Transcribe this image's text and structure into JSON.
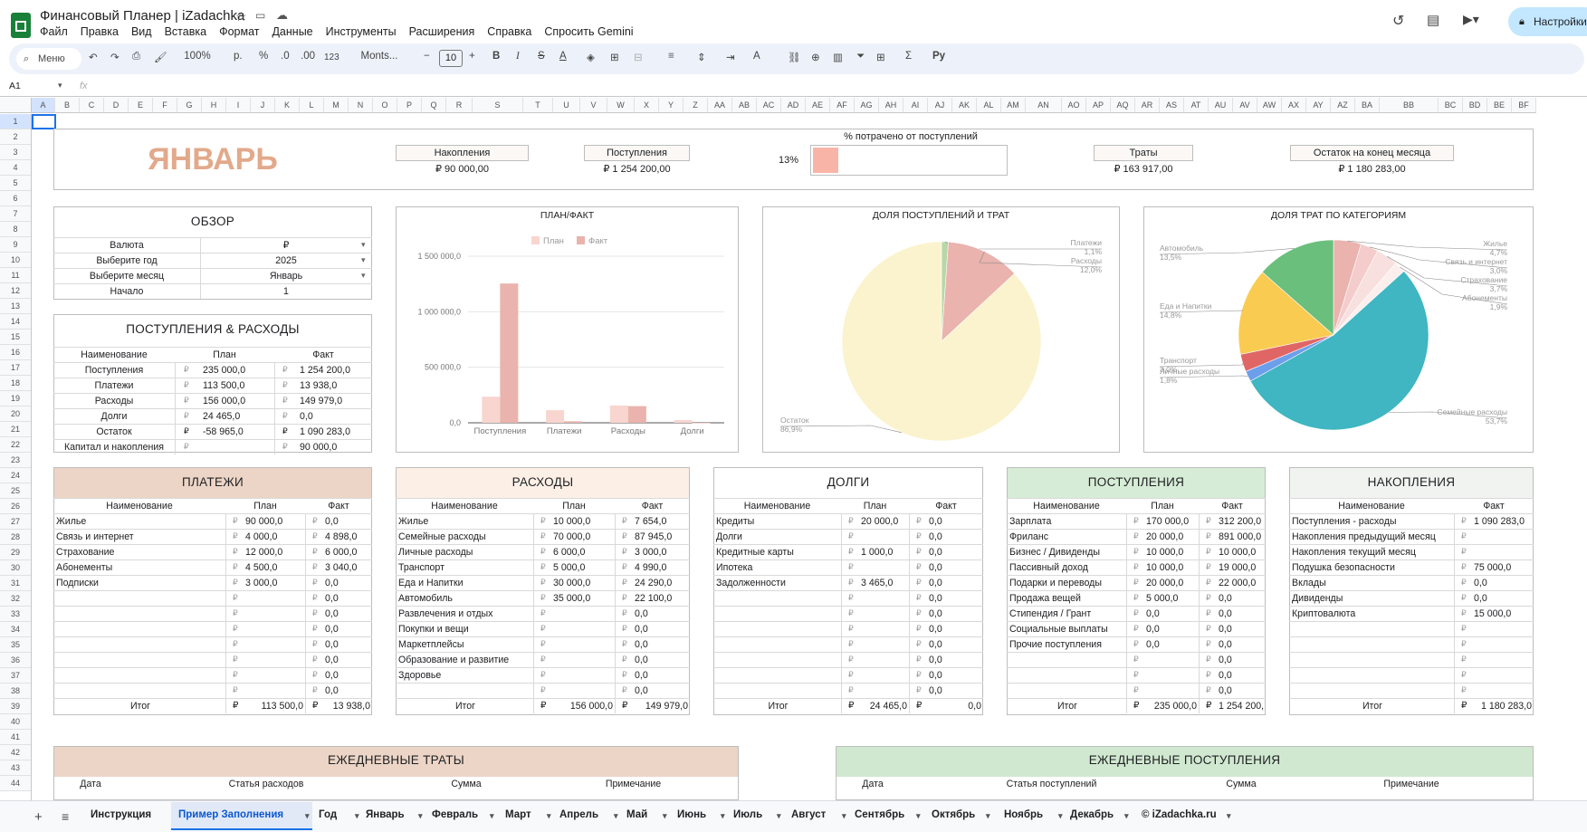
{
  "doc": {
    "title": "Финансовый Планер | iZadachka",
    "share": "Настройки"
  },
  "menu": [
    "Файл",
    "Правка",
    "Вид",
    "Вставка",
    "Формат",
    "Данные",
    "Инструменты",
    "Расширения",
    "Справка",
    "Спросить Gemini"
  ],
  "toolbar": {
    "search": "Меню",
    "zoom": "100%",
    "currency": "р.",
    "percent": "%",
    "dec_less": ".0",
    "dec_more": ".00",
    "fmt123": "123",
    "font": "Monts...",
    "font_size": "10",
    "func": "Σ",
    "py": "Py"
  },
  "formula": {
    "cell": "A1",
    "fx": "fx"
  },
  "cols": [
    "A",
    "B",
    "C",
    "D",
    "E",
    "F",
    "G",
    "H",
    "I",
    "J",
    "K",
    "L",
    "M",
    "N",
    "O",
    "P",
    "Q",
    "R",
    "S",
    "T",
    "U",
    "V",
    "W",
    "X",
    "Y",
    "Z",
    "AA",
    "AB",
    "AC",
    "AD",
    "AE",
    "AF",
    "AG",
    "AH",
    "AI",
    "AJ",
    "AK",
    "AL",
    "AM",
    "AN",
    "AO",
    "AP",
    "AQ",
    "AR",
    "AS",
    "AT",
    "AU",
    "AV",
    "AW",
    "AX",
    "AY",
    "AZ",
    "BA",
    "BB",
    "BC",
    "BD",
    "BE",
    "BF"
  ],
  "rows": [
    "1",
    "2",
    "3",
    "4",
    "5",
    "6",
    "7",
    "8",
    "9",
    "10",
    "11",
    "12",
    "13",
    "14",
    "15",
    "16",
    "17",
    "18",
    "19",
    "20",
    "21",
    "22",
    "23",
    "24",
    "25",
    "26",
    "27",
    "28",
    "29",
    "30",
    "31",
    "32",
    "33",
    "34",
    "35",
    "36",
    "37",
    "38",
    "39",
    "40",
    "41",
    "42",
    "43",
    "44"
  ],
  "kpi": {
    "month": "ЯНВАРЬ",
    "savings_label": "Накопления",
    "savings": "₽ 90 000,00",
    "income_label": "Поступления",
    "income": "₽ 1 254 200,00",
    "spent_title": "% потрачено от поступлений",
    "spent_pct": "13%",
    "spent_fraction": 0.13,
    "expenses_label": "Траты",
    "expenses": "₽ 163 917,00",
    "balance_label": "Остаток на конец месяца",
    "balance": "₽ 1 180 283,00"
  },
  "overview": {
    "title": "ОБЗОР",
    "rows": [
      [
        "Валюта",
        "₽"
      ],
      [
        "Выберите год",
        "2025"
      ],
      [
        "Выберите месяц",
        "Январь"
      ],
      [
        "Начало",
        "1"
      ]
    ]
  },
  "ie": {
    "title": "ПОСТУПЛЕНИЯ & РАСХОДЫ",
    "headers": [
      "Наименование",
      "План",
      "Факт"
    ],
    "cur": "₽",
    "rows": [
      [
        "Поступления",
        "235 000,0",
        "1 254 200,0"
      ],
      [
        "Платежи",
        "113 500,0",
        "13 938,0"
      ],
      [
        "Расходы",
        "156 000,0",
        "149 979,0"
      ],
      [
        "Долги",
        "24 465,0",
        "0,0"
      ],
      [
        "Остаток",
        "-58 965,0",
        "1 090 283,0"
      ],
      [
        "Капитал и накопления",
        "",
        "90 000,0"
      ]
    ]
  },
  "chart_data": [
    {
      "type": "bar",
      "title": "ПЛАН/ФАКТ",
      "categories": [
        "Поступления",
        "Платежи",
        "Расходы",
        "Долги"
      ],
      "series": [
        {
          "name": "План",
          "values": [
            235000,
            113500,
            156000,
            24465
          ],
          "color": "#f8d5cf"
        },
        {
          "name": "Факт",
          "values": [
            1254200,
            13938,
            149979,
            0
          ],
          "color": "#eab3ad"
        }
      ],
      "yticks": [
        "0,0",
        "500 000,0",
        "1 000 000,0",
        "1 500 000,0"
      ],
      "ylim": [
        0,
        1500000
      ],
      "legend": "top"
    },
    {
      "type": "pie",
      "title": "ДОЛЯ ПОСТУПЛЕНИЙ И ТРАТ",
      "slices": [
        {
          "name": "Платежи",
          "pct": "1,1%",
          "value": 1.1,
          "color": "#b7d7a8"
        },
        {
          "name": "Расходы",
          "pct": "12,0%",
          "value": 12.0,
          "color": "#eab3ad"
        },
        {
          "name": "Остаток",
          "pct": "86,9%",
          "value": 86.9,
          "color": "#fbf3cd"
        }
      ]
    },
    {
      "type": "pie",
      "title": "ДОЛЯ ТРАТ ПО КАТЕГОРИЯМ",
      "slices": [
        {
          "name": "Жилье",
          "pct": "4,7%",
          "value": 4.7,
          "color": "#eab3ad"
        },
        {
          "name": "Связь и интернет",
          "pct": "3,0%",
          "value": 3.0,
          "color": "#f4cccc"
        },
        {
          "name": "Страхование",
          "pct": "3,7%",
          "value": 3.7,
          "color": "#f8e0de"
        },
        {
          "name": "Абонементы",
          "pct": "1,9%",
          "value": 1.9,
          "color": "#fdeeee"
        },
        {
          "name": "Семейные расходы",
          "pct": "53,7%",
          "value": 53.7,
          "color": "#3fb6c1"
        },
        {
          "name": "Личные расходы",
          "pct": "1,8%",
          "value": 1.8,
          "color": "#6d9eeb"
        },
        {
          "name": "Транспорт",
          "pct": "3,0%",
          "value": 3.0,
          "color": "#e06666"
        },
        {
          "name": "Еда и Напитки",
          "pct": "14,8%",
          "value": 14.8,
          "color": "#f9cb51"
        },
        {
          "name": "Автомобиль",
          "pct": "13,5%",
          "value": 13.5,
          "color": "#6bbf7c"
        }
      ]
    }
  ],
  "tables": [
    {
      "title": "ПЛАТЕЖИ",
      "headers": [
        "Наименование",
        "План",
        "Факт"
      ],
      "rows": [
        [
          "Жилье",
          "90 000,0",
          "0,0"
        ],
        [
          "Связь и интернет",
          "4 000,0",
          "4 898,0"
        ],
        [
          "Страхование",
          "12 000,0",
          "6 000,0"
        ],
        [
          "Абонементы",
          "4 500,0",
          "3 040,0"
        ],
        [
          "Подписки",
          "3 000,0",
          "0,0"
        ],
        [
          "",
          "",
          "0,0"
        ],
        [
          "",
          "",
          "0,0"
        ],
        [
          "",
          "",
          "0,0"
        ],
        [
          "",
          "",
          "0,0"
        ],
        [
          "",
          "",
          "0,0"
        ],
        [
          "",
          "",
          "0,0"
        ],
        [
          "",
          "",
          "0,0"
        ]
      ],
      "total": [
        "Итог",
        "113 500,0",
        "13 938,0"
      ]
    },
    {
      "title": "РАСХОДЫ",
      "headers": [
        "Наименование",
        "План",
        "Факт"
      ],
      "rows": [
        [
          "Жилье",
          "10 000,0",
          "7 654,0"
        ],
        [
          "Семейные расходы",
          "70 000,0",
          "87 945,0"
        ],
        [
          "Личные расходы",
          "6 000,0",
          "3 000,0"
        ],
        [
          "Транспорт",
          "5 000,0",
          "4 990,0"
        ],
        [
          "Еда и Напитки",
          "30 000,0",
          "24 290,0"
        ],
        [
          "Автомобиль",
          "35 000,0",
          "22 100,0"
        ],
        [
          "Развлечения и отдых",
          "",
          "0,0"
        ],
        [
          "Покупки и вещи",
          "",
          "0,0"
        ],
        [
          "Маркетплейсы",
          "",
          "0,0"
        ],
        [
          "Образование и развитие",
          "",
          "0,0"
        ],
        [
          "Здоровье",
          "",
          "0,0"
        ],
        [
          "",
          "",
          "0,0"
        ]
      ],
      "total": [
        "Итог",
        "156 000,0",
        "149 979,0"
      ]
    },
    {
      "title": "ДОЛГИ",
      "headers": [
        "Наименование",
        "План",
        "Факт"
      ],
      "rows": [
        [
          "Кредиты",
          "20 000,0",
          "0,0"
        ],
        [
          "Долги",
          "",
          "0,0"
        ],
        [
          "Кредитные карты",
          "1 000,0",
          "0,0"
        ],
        [
          "Ипотека",
          "",
          "0,0"
        ],
        [
          "Задолженности",
          "3 465,0",
          "0,0"
        ],
        [
          "",
          "",
          "0,0"
        ],
        [
          "",
          "",
          "0,0"
        ],
        [
          "",
          "",
          "0,0"
        ],
        [
          "",
          "",
          "0,0"
        ],
        [
          "",
          "",
          "0,0"
        ],
        [
          "",
          "",
          "0,0"
        ],
        [
          "",
          "",
          "0,0"
        ]
      ],
      "total": [
        "Итог",
        "24 465,0",
        "0,0"
      ]
    },
    {
      "title": "ПОСТУПЛЕНИЯ",
      "headers": [
        "Наименование",
        "План",
        "Факт"
      ],
      "rows": [
        [
          "Зарплата",
          "170 000,0",
          "312 200,0"
        ],
        [
          "Фриланс",
          "20 000,0",
          "891 000,0"
        ],
        [
          "Бизнес / Дивиденды",
          "10 000,0",
          "10 000,0"
        ],
        [
          "Пассивный доход",
          "10 000,0",
          "19 000,0"
        ],
        [
          "Подарки и переводы",
          "20 000,0",
          "22 000,0"
        ],
        [
          "Продажа вещей",
          "5 000,0",
          "0,0"
        ],
        [
          "Стипендия / Грант",
          "0,0",
          "0,0"
        ],
        [
          "Социальные выплаты",
          "0,0",
          "0,0"
        ],
        [
          "Прочие поступления",
          "0,0",
          "0,0"
        ],
        [
          "",
          "",
          "0,0"
        ],
        [
          "",
          "",
          "0,0"
        ],
        [
          "",
          "",
          "0,0"
        ]
      ],
      "total": [
        "Итог",
        "235 000,0",
        "1 254 200,0"
      ]
    },
    {
      "title": "НАКОПЛЕНИЯ",
      "headers": [
        "Наименование",
        "Факт"
      ],
      "rows": [
        [
          "Поступления - расходы",
          "1 090 283,0"
        ],
        [
          "Накопления предыдущий месяц",
          ""
        ],
        [
          "Накопления текущий месяц",
          ""
        ],
        [
          "Подушка безопасности",
          "75 000,0"
        ],
        [
          "Вклады",
          "0,0"
        ],
        [
          "Дивиденды",
          "0,0"
        ],
        [
          "Криптовалюта",
          "15 000,0"
        ],
        [
          "",
          ""
        ],
        [
          "",
          ""
        ],
        [
          "",
          ""
        ],
        [
          "",
          ""
        ],
        [
          "",
          ""
        ]
      ],
      "total": [
        "Итог",
        "1 180 283,0"
      ]
    }
  ],
  "daily_exp": {
    "title": "ЕЖЕДНЕВНЫЕ ТРАТЫ",
    "headers": [
      "Дата",
      "Статья расходов",
      "Сумма",
      "Примечание"
    ]
  },
  "daily_inc": {
    "title": "ЕЖЕДНЕВНЫЕ ПОСТУПЛЕНИЯ",
    "headers": [
      "Дата",
      "Статья поступлений",
      "Сумма",
      "Примечание"
    ]
  },
  "tabs": [
    "Инструкция",
    "Пример Заполнения",
    "Год",
    "Январь",
    "Февраль",
    "Март",
    "Апрель",
    "Май",
    "Июнь",
    "Июль",
    "Август",
    "Сентябрь",
    "Октябрь",
    "Ноябрь",
    "Декабрь",
    "© iZadachka.ru"
  ],
  "active_tab": 1,
  "colors": {
    "accent_month": "#e2a98b",
    "payments_head": "#ecd5c6",
    "expenses_head": "#fcefe6",
    "income_head": "#d7ecd6",
    "savings_head": "#f1f3f1",
    "daily_exp_head": "#ecd5c6",
    "daily_inc_head": "#d0e8d0",
    "spent_bar": "#f9b4a8"
  }
}
